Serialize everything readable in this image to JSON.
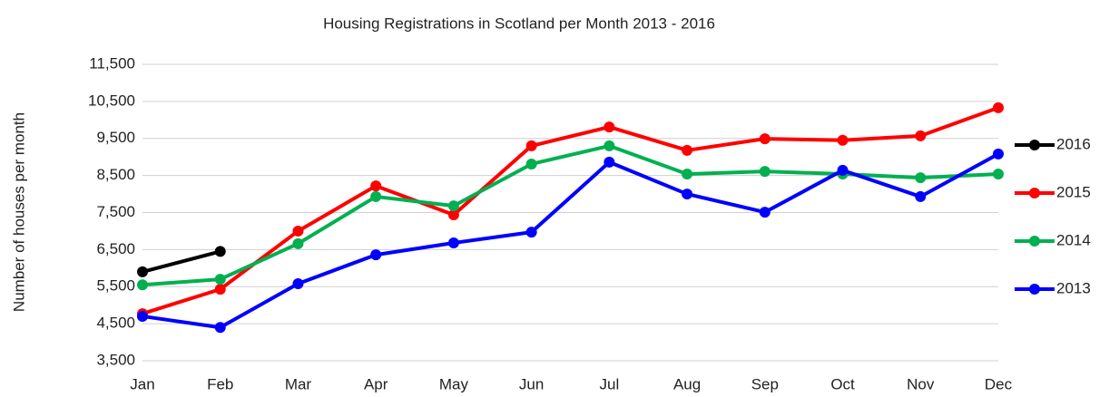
{
  "chart_data": {
    "type": "line",
    "title": "Housing Registrations in Scotland per Month 2013 - 2016",
    "y_label": "Number of houses per month",
    "categories": [
      "Jan",
      "Feb",
      "Mar",
      "Apr",
      "May",
      "Jun",
      "Jul",
      "Aug",
      "Sep",
      "Oct",
      "Nov",
      "Dec"
    ],
    "series": [
      {
        "name": "2016",
        "color": "#000000",
        "values": [
          5900,
          6450,
          null,
          null,
          null,
          null,
          null,
          null,
          null,
          null,
          null,
          null
        ]
      },
      {
        "name": "2015",
        "color": "#ff0000",
        "values": [
          4770,
          5430,
          7000,
          8220,
          7440,
          9300,
          9810,
          9180,
          9490,
          9450,
          9570,
          10330
        ]
      },
      {
        "name": "2014",
        "color": "#00b050",
        "values": [
          5550,
          5700,
          6660,
          7930,
          7680,
          8810,
          9300,
          8540,
          8610,
          8540,
          8440,
          8540
        ]
      },
      {
        "name": "2013",
        "color": "#0000ff",
        "values": [
          4700,
          4400,
          5580,
          6360,
          6680,
          6970,
          8860,
          8000,
          7510,
          8640,
          7930,
          9080
        ]
      }
    ],
    "ylim": [
      3500,
      11500
    ],
    "yticks": [
      {
        "value": 3500,
        "label": "3,500"
      },
      {
        "value": 4500,
        "label": "4,500"
      },
      {
        "value": 5500,
        "label": "5,500"
      },
      {
        "value": 6500,
        "label": "6,500"
      },
      {
        "value": 7500,
        "label": "7,500"
      },
      {
        "value": 8500,
        "label": "8,500"
      },
      {
        "value": 9500,
        "label": "9,500"
      },
      {
        "value": 10500,
        "label": "10,500"
      },
      {
        "value": 11500,
        "label": "11,500"
      }
    ],
    "grid": true,
    "legend": "right"
  }
}
